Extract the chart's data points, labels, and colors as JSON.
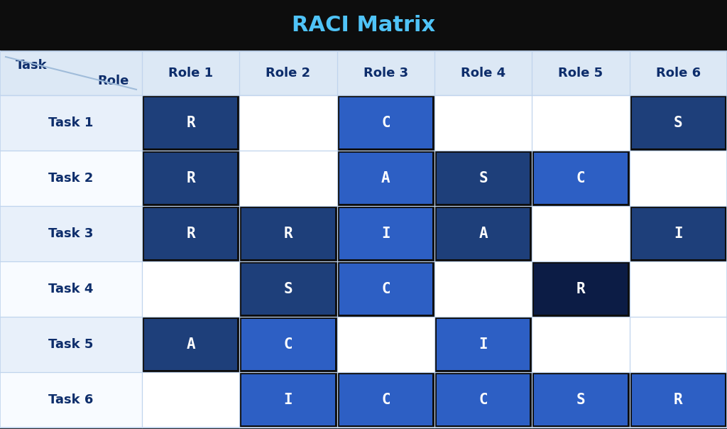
{
  "title": "RACI Matrix",
  "title_color": "#4fc3f7",
  "title_bg": "#0d0d0d",
  "header_bg": "#dce8f5",
  "header_text_color": "#0d2d6b",
  "row_bg_even": "#e8f0fa",
  "row_bg_odd": "#f8fbff",
  "tasks": [
    "Task 1",
    "Task 2",
    "Task 3",
    "Task 4",
    "Task 5",
    "Task 6"
  ],
  "roles": [
    "Role 1",
    "Role 2",
    "Role 3",
    "Role 4",
    "Role 5",
    "Role 6"
  ],
  "matrix": [
    [
      "R",
      "",
      "C",
      "",
      "",
      "S"
    ],
    [
      "R",
      "",
      "A",
      "S",
      "C",
      ""
    ],
    [
      "R",
      "R",
      "I",
      "A",
      "",
      "I"
    ],
    [
      "",
      "S",
      "C",
      "",
      "R",
      ""
    ],
    [
      "A",
      "C",
      "",
      "I",
      "",
      ""
    ],
    [
      "",
      "I",
      "C",
      "C",
      "S",
      "R"
    ]
  ],
  "cell_colors": [
    [
      "dark",
      "",
      "medium",
      "",
      "",
      "dark"
    ],
    [
      "dark",
      "",
      "medium",
      "dark",
      "medium",
      ""
    ],
    [
      "dark",
      "dark",
      "medium",
      "dark",
      "",
      "dark"
    ],
    [
      "",
      "dark",
      "medium",
      "",
      "darkest",
      ""
    ],
    [
      "dark",
      "medium",
      "",
      "medium",
      "",
      ""
    ],
    [
      "",
      "medium",
      "medium",
      "medium",
      "medium",
      "medium"
    ]
  ],
  "color_map": {
    "dark": "#1e3f7a",
    "medium": "#2d5fc4",
    "darkest": "#0c1c45",
    "": ""
  },
  "grid_color": "#c0d4ed",
  "text_color_filled": "#ffffff",
  "diagonal_color": "#a0bcda",
  "title_fontsize": 22,
  "header_fontsize": 13,
  "task_fontsize": 13,
  "cell_fontsize": 15
}
